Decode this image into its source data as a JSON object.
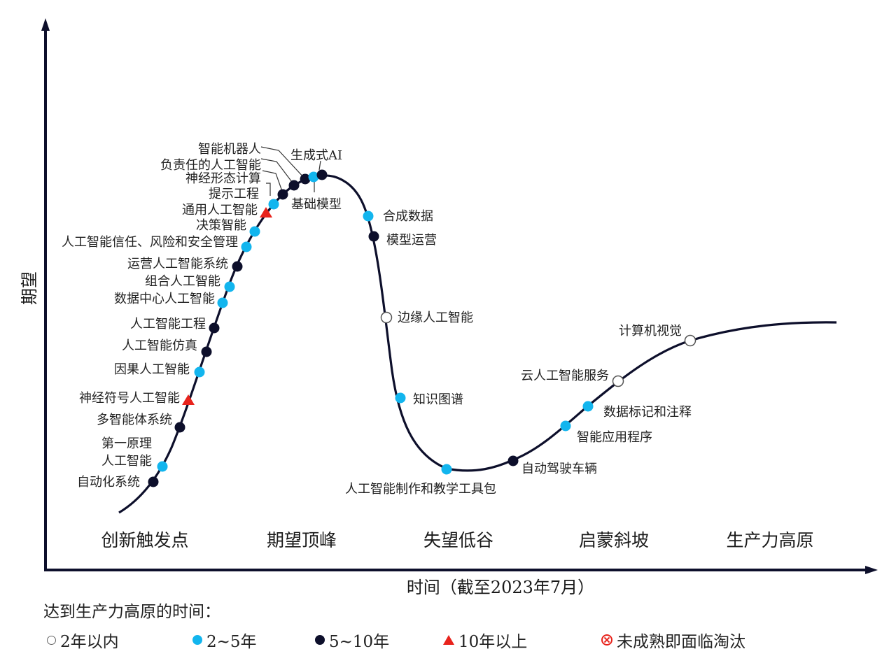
{
  "diagram": {
    "y_axis_label": "期望",
    "x_axis_label": "时间（截至2023年7月）",
    "phases": [
      "创新触发点",
      "期望顶峰",
      "失望低谷",
      "启蒙斜坡",
      "生产力高原"
    ],
    "colors": {
      "curve": "#0d0f2b",
      "open": "#ffffff",
      "light": "#12b5ee",
      "dark": "#0d0f2b",
      "red": "#e8231c"
    },
    "technologies": [
      {
        "name": "自动化系统",
        "type": "dark"
      },
      {
        "name": "第一原理人工智能",
        "type": "light"
      },
      {
        "name": "多智能体系统",
        "type": "dark"
      },
      {
        "name": "神经符号人工智能",
        "type": "red"
      },
      {
        "name": "因果人工智能",
        "type": "light"
      },
      {
        "name": "人工智能仿真",
        "type": "dark"
      },
      {
        "name": "人工智能工程",
        "type": "dark"
      },
      {
        "name": "数据中心人工智能",
        "type": "light"
      },
      {
        "name": "组合人工智能",
        "type": "light"
      },
      {
        "name": "运营人工智能系统",
        "type": "dark"
      },
      {
        "name": "人工智能信任、风险和安全管理",
        "type": "light"
      },
      {
        "name": "决策智能",
        "type": "light"
      },
      {
        "name": "通用人工智能",
        "type": "red"
      },
      {
        "name": "提示工程",
        "type": "light"
      },
      {
        "name": "神经形态计算",
        "type": "dark"
      },
      {
        "name": "负责任的人工智能",
        "type": "dark"
      },
      {
        "name": "智能机器人",
        "type": "dark"
      },
      {
        "name": "基础模型",
        "type": "light"
      },
      {
        "name": "生成式AI",
        "type": "dark"
      },
      {
        "name": "合成数据",
        "type": "light"
      },
      {
        "name": "模型运营",
        "type": "dark"
      },
      {
        "name": "边缘人工智能",
        "type": "open"
      },
      {
        "name": "知识图谱",
        "type": "light"
      },
      {
        "name": "人工智能制作和教学工具包",
        "type": "light"
      },
      {
        "name": "自动驾驶车辆",
        "type": "dark"
      },
      {
        "name": "智能应用程序",
        "type": "light"
      },
      {
        "name": "数据标记和注释",
        "type": "light"
      },
      {
        "name": "云人工智能服务",
        "type": "open"
      },
      {
        "name": "计算机视觉",
        "type": "open"
      }
    ]
  },
  "legend": {
    "title": "达到生产力高原的时间：",
    "items": [
      {
        "symbol": "open-circle",
        "label": "2年以内"
      },
      {
        "symbol": "light-blue-dot",
        "label": "2~5年"
      },
      {
        "symbol": "dark-dot",
        "label": "5~10年"
      },
      {
        "symbol": "red-triangle",
        "label": "10年以上"
      },
      {
        "symbol": "red-crossed-circle",
        "label": "未成熟即面临淘汰"
      }
    ]
  }
}
